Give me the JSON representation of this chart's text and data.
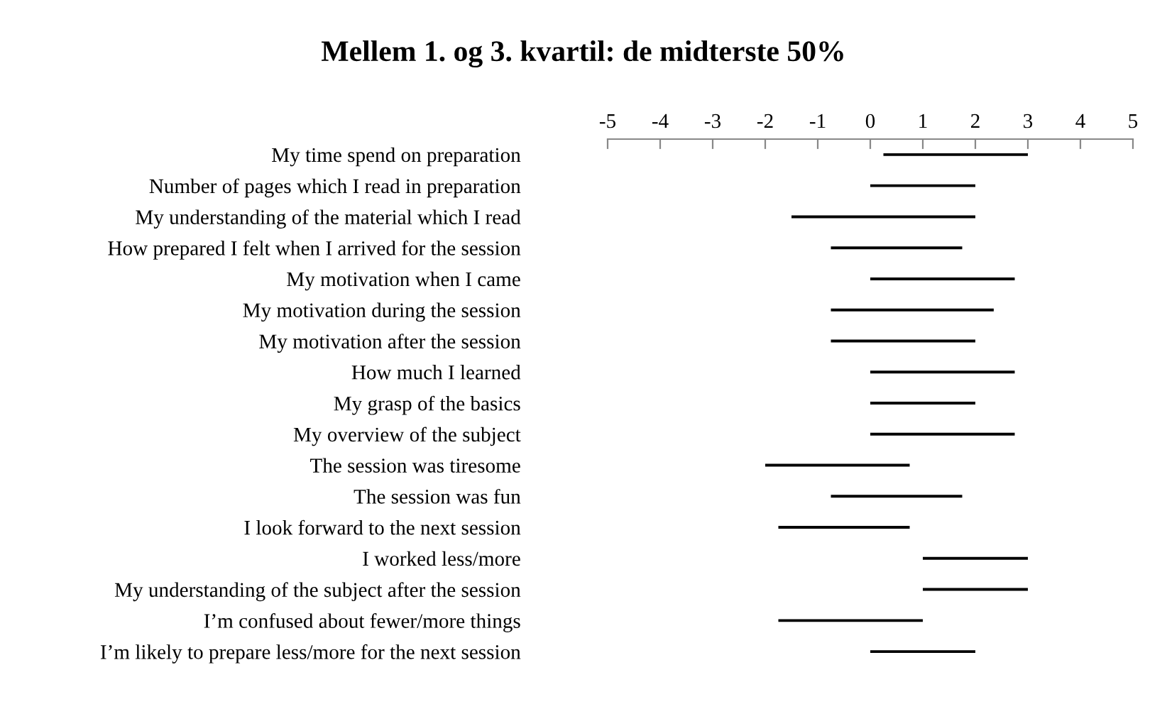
{
  "chart_data": {
    "type": "bar",
    "orientation": "horizontal",
    "title": "Mellem 1. og 3. kvartil: de midterste 50%",
    "categories": [
      "My time spend on preparation",
      "Number of pages which I read in preparation",
      "My understanding of the material which I read",
      "How prepared I felt when I arrived for the session",
      "My motivation when I came",
      "My motivation during the session",
      "My motivation after the session",
      "How much I learned",
      "My grasp of the basics",
      "My overview of the subject",
      "The session was tiresome",
      "The session was fun",
      "I look forward to the next session",
      "I worked less/more",
      "My understanding of the subject after the session",
      "I’m confused about fewer/more things",
      "I’m likely to prepare less/more for the next session"
    ],
    "base": [
      0.25,
      0,
      -1.5,
      -0.75,
      0,
      -0.75,
      -0.75,
      0,
      0,
      0,
      -2,
      -0.75,
      -1.75,
      1,
      1,
      -1.75,
      0
    ],
    "values": [
      2.75,
      2,
      3.5,
      2.5,
      2.75,
      3.1,
      2.75,
      2.75,
      2,
      2.75,
      2.75,
      2.5,
      2.5,
      2,
      2,
      2.75,
      2
    ],
    "color": "#000000",
    "xlim": [
      -5,
      5
    ],
    "xticks": [
      -5,
      -4,
      -3,
      -2,
      -1,
      0,
      1,
      2,
      3,
      4,
      5
    ],
    "grid": false
  }
}
